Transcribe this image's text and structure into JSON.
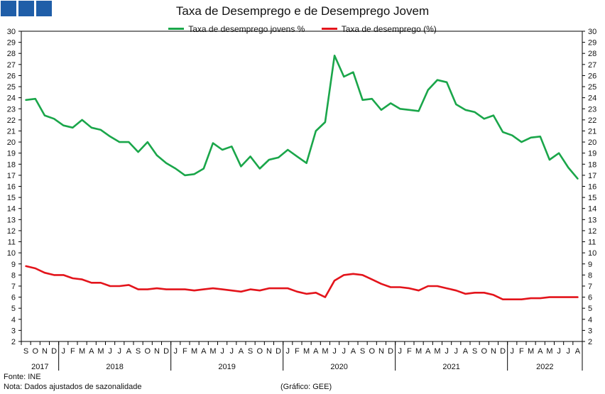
{
  "title": "Taxa de Desemprego e de Desemprego Jovem",
  "footer": {
    "source": "Fonte: INE",
    "note": "Nota: Dados ajustados de sazonalidade",
    "credit": "(Gráfico: GEE)"
  },
  "colors": {
    "youth": "#1aa64a",
    "total": "#e3141b",
    "logo": "#1f5ea8",
    "axis": "#000000"
  },
  "chart_data": {
    "type": "line",
    "title": "Taxa de Desemprego e de Desemprego Jovem",
    "xlabel": "",
    "ylabel": "",
    "ylim": [
      2,
      30
    ],
    "y_ticks": [
      2,
      3,
      4,
      5,
      6,
      7,
      8,
      9,
      10,
      11,
      12,
      13,
      14,
      15,
      16,
      17,
      18,
      19,
      20,
      21,
      22,
      23,
      24,
      25,
      26,
      27,
      28,
      29,
      30
    ],
    "grid": false,
    "legend_position": "top-center",
    "month_labels": [
      "S",
      "O",
      "N",
      "D",
      "J",
      "F",
      "M",
      "A",
      "M",
      "J",
      "J",
      "A",
      "S",
      "O",
      "N",
      "D",
      "J",
      "F",
      "M",
      "A",
      "M",
      "J",
      "J",
      "A",
      "S",
      "O",
      "N",
      "D",
      "J",
      "F",
      "M",
      "A",
      "M",
      "J",
      "J",
      "A",
      "S",
      "O",
      "N",
      "D",
      "J",
      "F",
      "M",
      "A",
      "M",
      "J",
      "J",
      "A",
      "S",
      "O",
      "N",
      "D",
      "J",
      "F",
      "M",
      "A",
      "M",
      "J",
      "J",
      "A"
    ],
    "year_labels": [
      "2017",
      "2018",
      "2019",
      "2020",
      "2021",
      "2022"
    ],
    "series": [
      {
        "name": "Taxa de desemprego jovens %",
        "color": "#1aa64a",
        "values": [
          23.8,
          23.9,
          22.4,
          22.1,
          21.5,
          21.3,
          22.0,
          21.3,
          21.1,
          20.5,
          20.0,
          20.0,
          19.1,
          20.0,
          18.8,
          18.1,
          17.6,
          17.0,
          17.1,
          17.6,
          19.9,
          19.3,
          19.6,
          17.8,
          18.7,
          17.6,
          18.4,
          18.6,
          19.3,
          18.7,
          18.1,
          21.0,
          21.8,
          27.8,
          25.9,
          26.3,
          23.8,
          23.9,
          22.9,
          23.5,
          23.0,
          22.9,
          22.8,
          24.7,
          25.6,
          25.4,
          23.4,
          22.9,
          22.7,
          22.1,
          22.4,
          20.9,
          20.6,
          20.0,
          20.4,
          20.5,
          18.4,
          19.0,
          17.7,
          16.7
        ]
      },
      {
        "name": "Taxa de desemprego (%)",
        "color": "#e3141b",
        "values": [
          8.8,
          8.6,
          8.2,
          8.0,
          8.0,
          7.7,
          7.6,
          7.3,
          7.3,
          7.0,
          7.0,
          7.1,
          6.7,
          6.7,
          6.8,
          6.7,
          6.7,
          6.7,
          6.6,
          6.7,
          6.8,
          6.7,
          6.6,
          6.5,
          6.7,
          6.6,
          6.8,
          6.8,
          6.8,
          6.5,
          6.3,
          6.4,
          6.0,
          7.5,
          8.0,
          8.1,
          8.0,
          7.6,
          7.2,
          6.9,
          6.9,
          6.8,
          6.6,
          7.0,
          7.0,
          6.8,
          6.6,
          6.3,
          6.4,
          6.4,
          6.2,
          5.8,
          5.8,
          5.8,
          5.9,
          5.9,
          6.0,
          6.0,
          6.0,
          6.0
        ]
      }
    ]
  }
}
